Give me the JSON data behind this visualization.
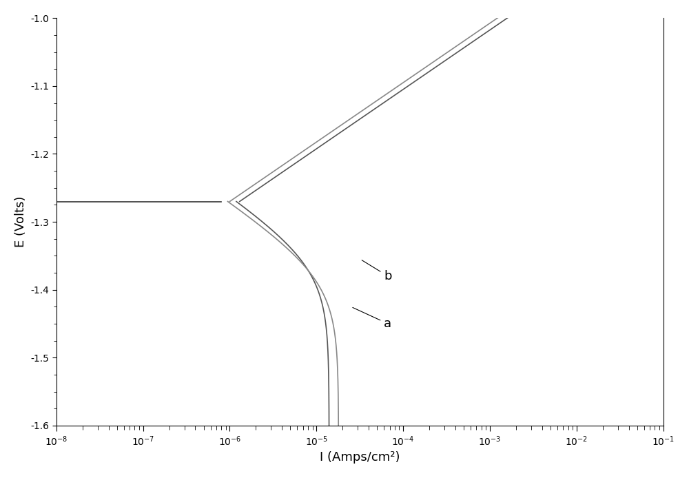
{
  "xlabel": "I (Amps/cm²)",
  "ylabel": "E (Volts)",
  "ylim": [
    -1.6,
    -1.0
  ],
  "yticks": [
    -1.6,
    -1.5,
    -1.4,
    -1.3,
    -1.2,
    -1.1,
    -1.0
  ],
  "e_corr": -1.27,
  "line_color_a": "#555555",
  "line_color_b": "#888888",
  "bg_color": "#ffffff",
  "annotation_b": "b",
  "annotation_a": "a",
  "linewidth": 1.2
}
